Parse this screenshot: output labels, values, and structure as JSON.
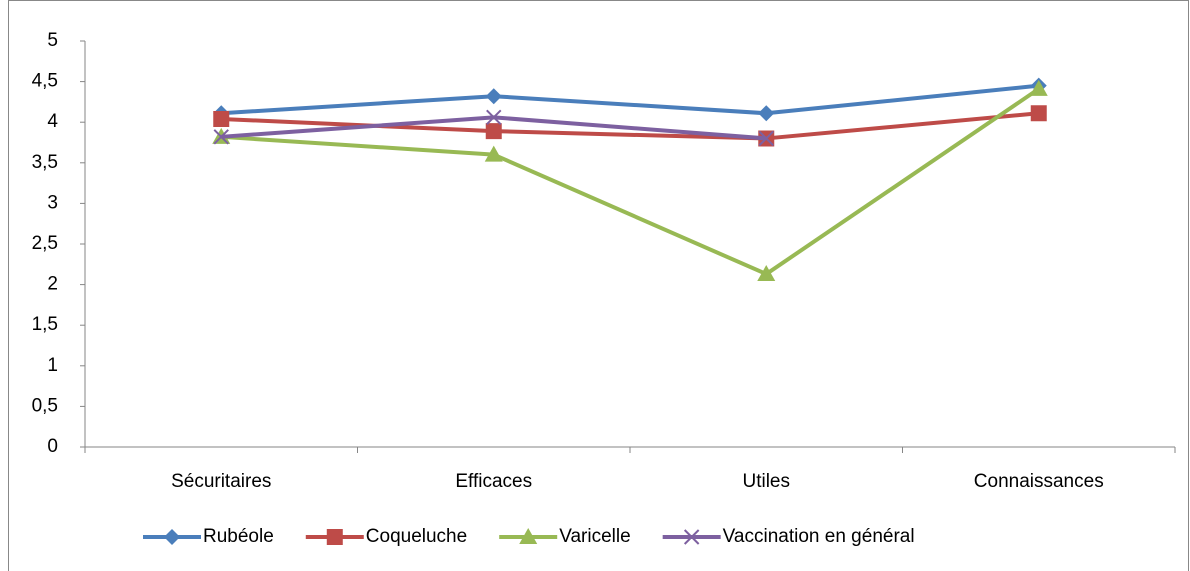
{
  "chart_data": {
    "type": "line",
    "categories": [
      "Sécuritaires",
      "Efficaces",
      "Utiles",
      "Connaissances"
    ],
    "series": [
      {
        "name": "Rubéole",
        "color": "#4a7ebb",
        "marker": "diamond",
        "values": [
          4.11,
          4.32,
          4.11,
          4.45
        ]
      },
      {
        "name": "Coqueluche",
        "color": "#be4b48",
        "marker": "square",
        "values": [
          4.04,
          3.89,
          3.8,
          4.11
        ]
      },
      {
        "name": "Varicelle",
        "color": "#98b954",
        "marker": "triangle",
        "values": [
          3.82,
          3.6,
          2.13,
          4.41
        ]
      },
      {
        "name": "Vaccination en général",
        "color": "#7d60a0",
        "marker": "x",
        "values": [
          3.82,
          4.06,
          3.8,
          null
        ]
      }
    ],
    "ylim": [
      0,
      5
    ],
    "yticks": [
      0,
      {
        "value": 0.5,
        "label": "0,5"
      },
      1,
      {
        "value": 1.5,
        "label": "1,5"
      },
      2,
      {
        "value": 2.5,
        "label": "2,5"
      },
      3,
      {
        "value": 3.5,
        "label": "3,5"
      },
      4,
      {
        "value": 4.5,
        "label": "4,5"
      },
      5
    ],
    "legend": "bottom"
  }
}
